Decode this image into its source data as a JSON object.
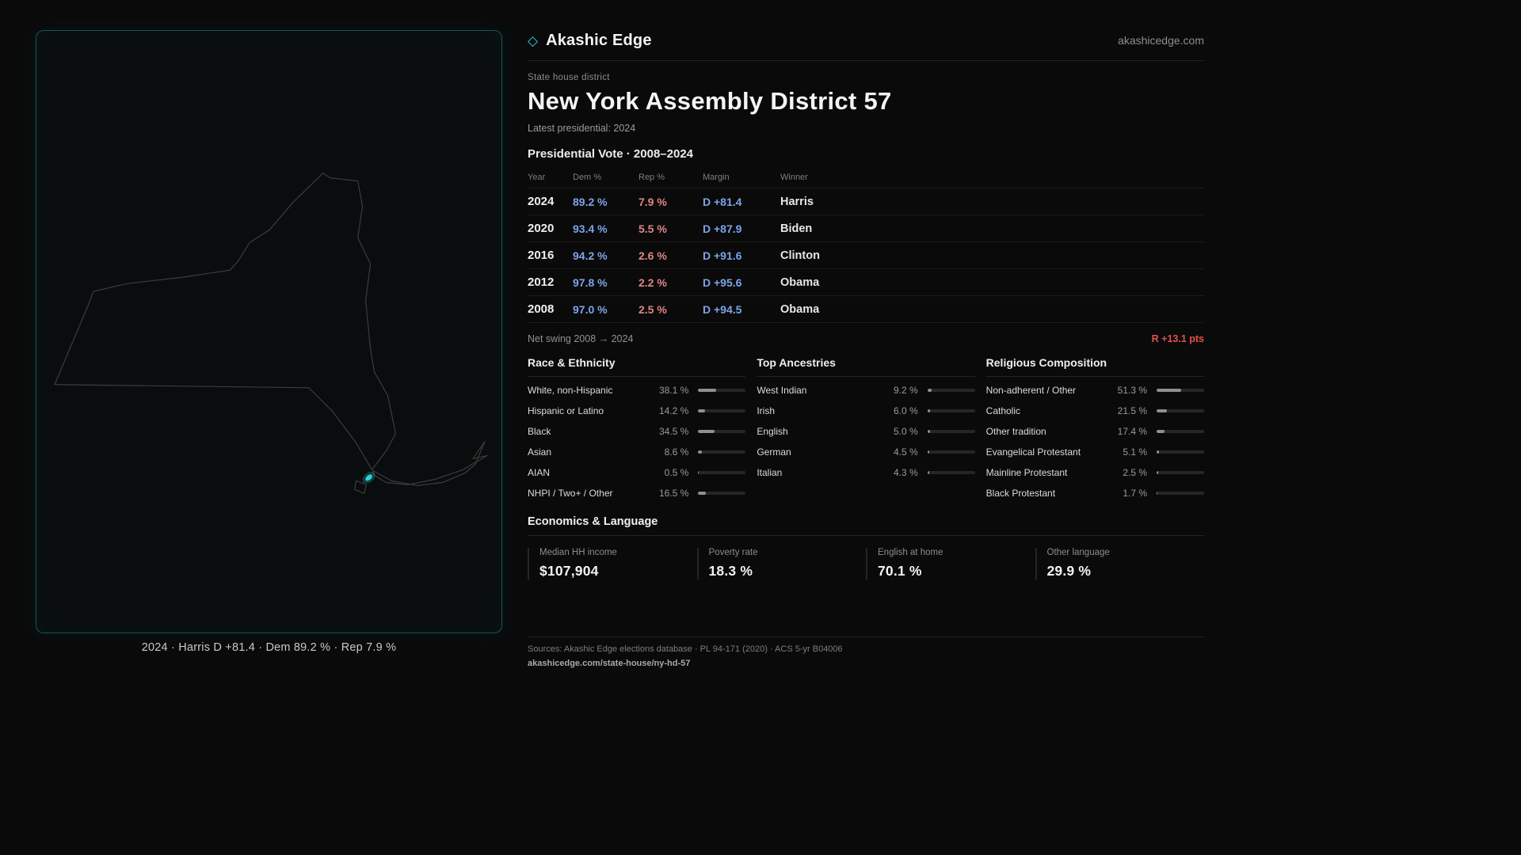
{
  "brand": {
    "name": "Akashic Edge",
    "site": "akashicedge.com",
    "diamond_icon": "◇"
  },
  "map": {
    "caption": "2024 · Harris D +81.4 · Dem 89.2 % · Rep 7.9 %"
  },
  "header": {
    "kicker": "State house district",
    "title": "New York Assembly District 57",
    "latest": "Latest presidential: 2024"
  },
  "vote": {
    "section_title": "Presidential Vote · 2008–2024",
    "columns": {
      "year": "Year",
      "dem": "Dem %",
      "rep": "Rep %",
      "margin": "Margin",
      "winner": "Winner"
    },
    "rows": [
      {
        "year": "2024",
        "dem": "89.2 %",
        "rep": "7.9 %",
        "margin": "D +81.4",
        "winner": "Harris"
      },
      {
        "year": "2020",
        "dem": "93.4 %",
        "rep": "5.5 %",
        "margin": "D +87.9",
        "winner": "Biden"
      },
      {
        "year": "2016",
        "dem": "94.2 %",
        "rep": "2.6 %",
        "margin": "D +91.6",
        "winner": "Clinton"
      },
      {
        "year": "2012",
        "dem": "97.8 %",
        "rep": "2.2 %",
        "margin": "D +95.6",
        "winner": "Obama"
      },
      {
        "year": "2008",
        "dem": "97.0 %",
        "rep": "2.5 %",
        "margin": "D +94.5",
        "winner": "Obama"
      }
    ],
    "net_swing_label": "Net swing 2008 → 2024",
    "net_swing_value": "R +13.1 pts"
  },
  "race": {
    "title": "Race & Ethnicity",
    "rows": [
      {
        "label": "White, non-Hispanic",
        "value": "38.1 %",
        "pct": 38.1
      },
      {
        "label": "Hispanic or Latino",
        "value": "14.2 %",
        "pct": 14.2
      },
      {
        "label": "Black",
        "value": "34.5 %",
        "pct": 34.5
      },
      {
        "label": "Asian",
        "value": "8.6 %",
        "pct": 8.6
      },
      {
        "label": "AIAN",
        "value": "0.5 %",
        "pct": 0.5
      },
      {
        "label": "NHPI / Two+ / Other",
        "value": "16.5 %",
        "pct": 16.5
      }
    ]
  },
  "ancestries": {
    "title": "Top Ancestries",
    "rows": [
      {
        "label": "West Indian",
        "value": "9.2 %",
        "pct": 9.2
      },
      {
        "label": "Irish",
        "value": "6.0 %",
        "pct": 6.0
      },
      {
        "label": "English",
        "value": "5.0 %",
        "pct": 5.0
      },
      {
        "label": "German",
        "value": "4.5 %",
        "pct": 4.5
      },
      {
        "label": "Italian",
        "value": "4.3 %",
        "pct": 4.3
      }
    ]
  },
  "religion": {
    "title": "Religious Composition",
    "rows": [
      {
        "label": "Non-adherent / Other",
        "value": "51.3 %",
        "pct": 51.3
      },
      {
        "label": "Catholic",
        "value": "21.5 %",
        "pct": 21.5
      },
      {
        "label": "Other tradition",
        "value": "17.4 %",
        "pct": 17.4
      },
      {
        "label": "Evangelical Protestant",
        "value": "5.1 %",
        "pct": 5.1
      },
      {
        "label": "Mainline Protestant",
        "value": "2.5 %",
        "pct": 2.5
      },
      {
        "label": "Black Protestant",
        "value": "1.7 %",
        "pct": 1.7
      }
    ]
  },
  "economics": {
    "title": "Economics & Language",
    "stats": [
      {
        "label": "Median HH income",
        "value": "$107,904"
      },
      {
        "label": "Poverty rate",
        "value": "18.3 %"
      },
      {
        "label": "English at home",
        "value": "70.1 %"
      },
      {
        "label": "Other language",
        "value": "29.9 %"
      }
    ]
  },
  "footer": {
    "sources": "Sources: Akashic Edge elections database · PL 94-171 (2020) · ACS 5-yr B04006",
    "permalink": "akashicedge.com/state-house/ny-hd-57"
  },
  "colors": {
    "dem": "#7da4e8",
    "rep": "#e08585",
    "accent": "#2bd0dc",
    "swing": "#e4504a"
  }
}
